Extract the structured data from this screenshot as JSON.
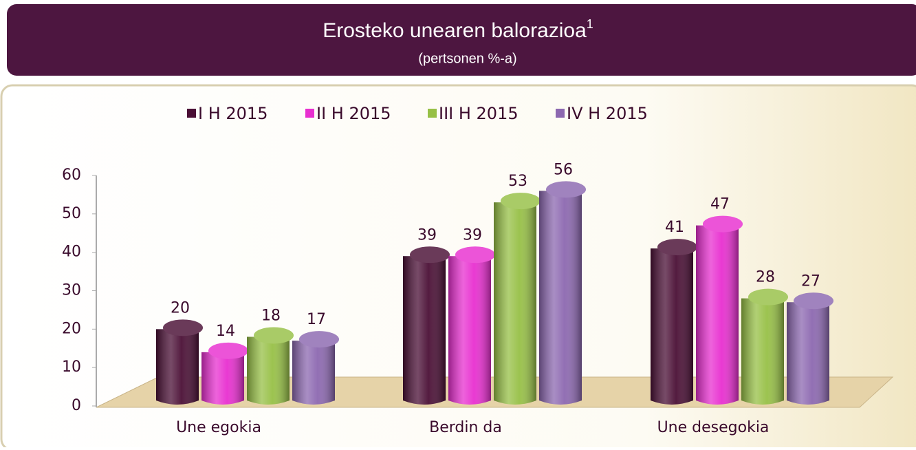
{
  "chart_data": {
    "type": "bar",
    "title": "Erosteko unearen balorazioa",
    "title_superscript": "1",
    "subtitle": "(pertsonen %-a)",
    "categories": [
      "Une egokia",
      "Berdin da",
      "Une desegokia"
    ],
    "series": [
      {
        "name": "I H 2015",
        "color": "#4a0f35",
        "values": [
          20,
          39,
          41
        ]
      },
      {
        "name": "II H 2015",
        "color": "#e82fd0",
        "values": [
          14,
          39,
          47
        ]
      },
      {
        "name": "III H 2015",
        "color": "#97c046",
        "values": [
          18,
          53,
          28
        ]
      },
      {
        "name": "IV H 2015",
        "color": "#8c68b0",
        "values": [
          17,
          56,
          27
        ]
      }
    ],
    "ylim": [
      0,
      60
    ],
    "yticks": [
      0,
      10,
      20,
      30,
      40,
      50,
      60
    ],
    "legend": "top"
  }
}
